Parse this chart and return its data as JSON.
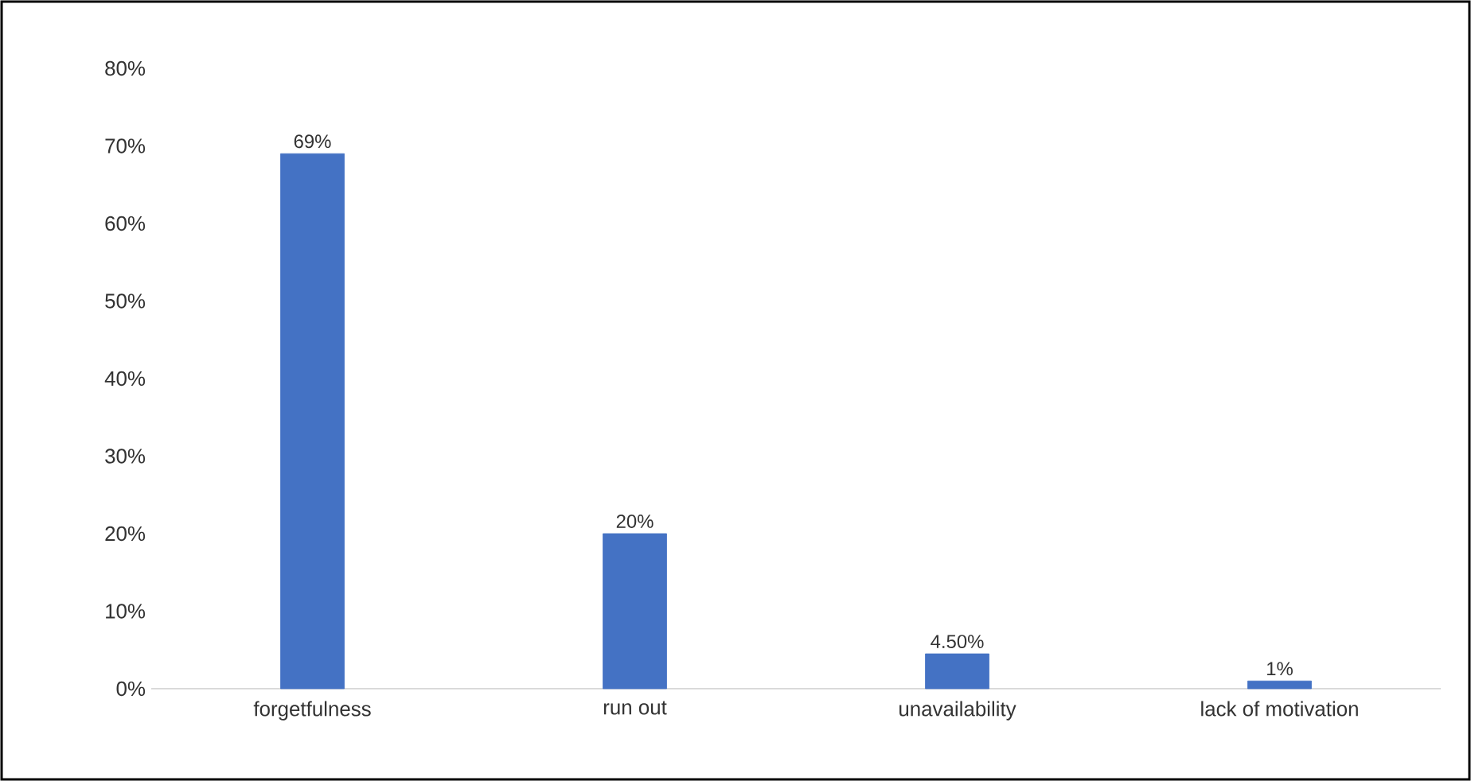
{
  "chart_data": {
    "type": "bar",
    "categories": [
      "forgetfulness",
      "run out",
      "unavailability",
      "lack of motivation"
    ],
    "values": [
      69,
      20,
      4.5,
      1
    ],
    "color": "#4472c4",
    "value_labels": [
      "69%",
      "20%",
      "4.50%",
      "1%"
    ],
    "ylim": [
      0,
      80
    ],
    "yticks": [
      {
        "value": 0,
        "label": "0%"
      },
      {
        "value": 10,
        "label": "10%"
      },
      {
        "value": 20,
        "label": "20%"
      },
      {
        "value": 30,
        "label": "30%"
      },
      {
        "value": 40,
        "label": "40%"
      },
      {
        "value": 50,
        "label": "50%"
      },
      {
        "value": 60,
        "label": "60%"
      },
      {
        "value": 70,
        "label": "70%"
      },
      {
        "value": 80,
        "label": "80%"
      }
    ],
    "grid": false
  }
}
